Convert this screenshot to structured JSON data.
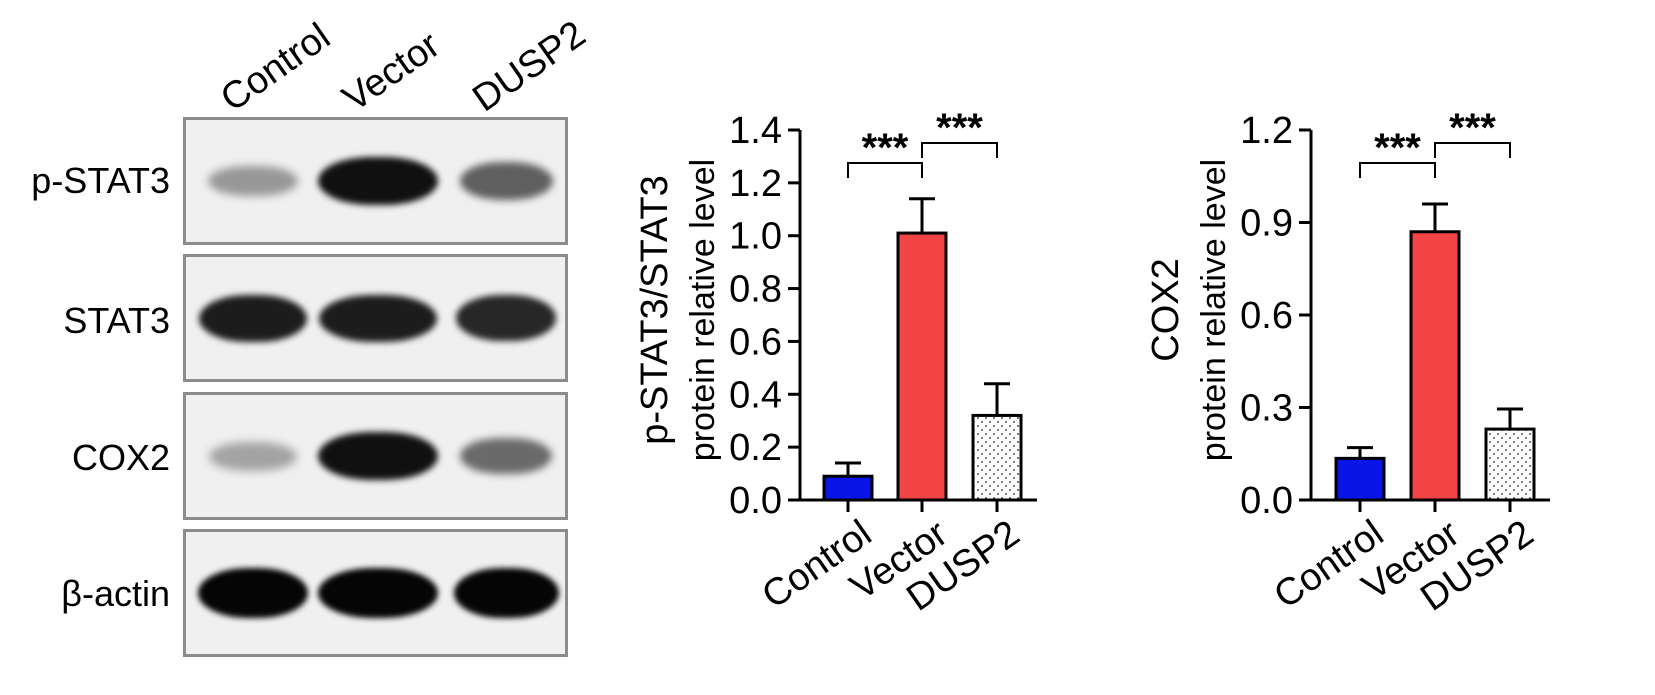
{
  "blot": {
    "lanes": [
      "Control",
      "Vector",
      "DUSP2"
    ],
    "rows": [
      {
        "label": "p-STAT3",
        "intensity": [
          0.35,
          0.95,
          0.6
        ]
      },
      {
        "label": "STAT3",
        "intensity": [
          0.9,
          0.9,
          0.85
        ]
      },
      {
        "label": "COX2",
        "intensity": [
          0.3,
          0.95,
          0.55
        ]
      },
      {
        "label": "β-actin",
        "intensity": [
          1.0,
          1.0,
          1.0
        ]
      }
    ]
  },
  "chart_data": [
    {
      "type": "bar",
      "categories": [
        "Control",
        "Vector",
        "DUSP2"
      ],
      "values": [
        0.09,
        1.01,
        0.32
      ],
      "errors": [
        0.05,
        0.13,
        0.12
      ],
      "ylabel": [
        "p-STAT3/STAT3",
        "protein relative level"
      ],
      "ylim": [
        0,
        1.4
      ],
      "yticks": [
        "0.0",
        "0.2",
        "0.4",
        "0.6",
        "0.8",
        "1.0",
        "1.2",
        "1.4"
      ],
      "bar_colors": [
        "#0a14e6",
        "#f24444",
        "#ffffff"
      ],
      "significance": [
        {
          "from": 0,
          "to": 1,
          "label": "***"
        },
        {
          "from": 1,
          "to": 2,
          "label": "***"
        }
      ]
    },
    {
      "type": "bar",
      "categories": [
        "Control",
        "Vector",
        "DUSP2"
      ],
      "values": [
        0.135,
        0.87,
        0.23
      ],
      "errors": [
        0.035,
        0.09,
        0.065
      ],
      "ylabel": [
        "COX2",
        "protein relative level"
      ],
      "ylim": [
        0,
        1.2
      ],
      "yticks": [
        "0.0",
        "0.3",
        "0.6",
        "0.9",
        "1.2"
      ],
      "bar_colors": [
        "#0a14e6",
        "#f24444",
        "#ffffff"
      ],
      "significance": [
        {
          "from": 0,
          "to": 1,
          "label": "***"
        },
        {
          "from": 1,
          "to": 2,
          "label": "***"
        }
      ]
    }
  ]
}
